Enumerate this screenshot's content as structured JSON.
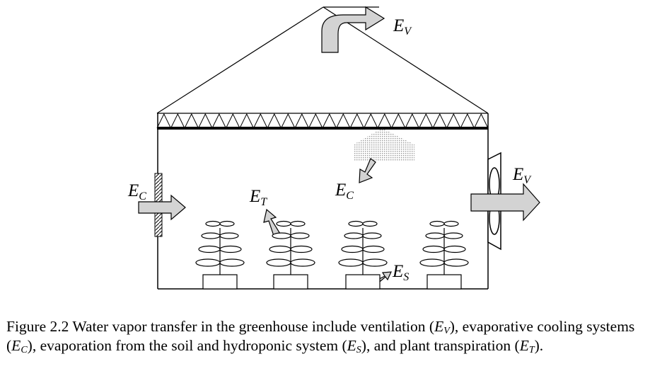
{
  "labels": {
    "ev_top": {
      "main": "E",
      "sub": "V"
    },
    "ev_right": {
      "main": "E",
      "sub": "V"
    },
    "ec_left": {
      "main": "E",
      "sub": "C"
    },
    "ec_center": {
      "main": "E",
      "sub": "C"
    },
    "et": {
      "main": "E",
      "sub": "T"
    },
    "es": {
      "main": "E",
      "sub": "S"
    }
  },
  "caption": {
    "part1": "Figure 2.2 Water vapor transfer in the greenhouse include ventilation (",
    "ev_main": "E",
    "ev_sub": "V",
    "part2": "), evaporative cooling systems (",
    "ec_main": "E",
    "ec_sub": "C",
    "part3": "), evaporation from the soil and hydroponic system (",
    "es_main": "E",
    "es_sub": "S",
    "part4": "), and plant transpiration (",
    "et_main": "E",
    "et_sub": "T",
    "part5": ")."
  },
  "colors": {
    "arrow_fill": "#d3d3d3",
    "stroke": "#000000",
    "mist": "#b8b8b8"
  }
}
